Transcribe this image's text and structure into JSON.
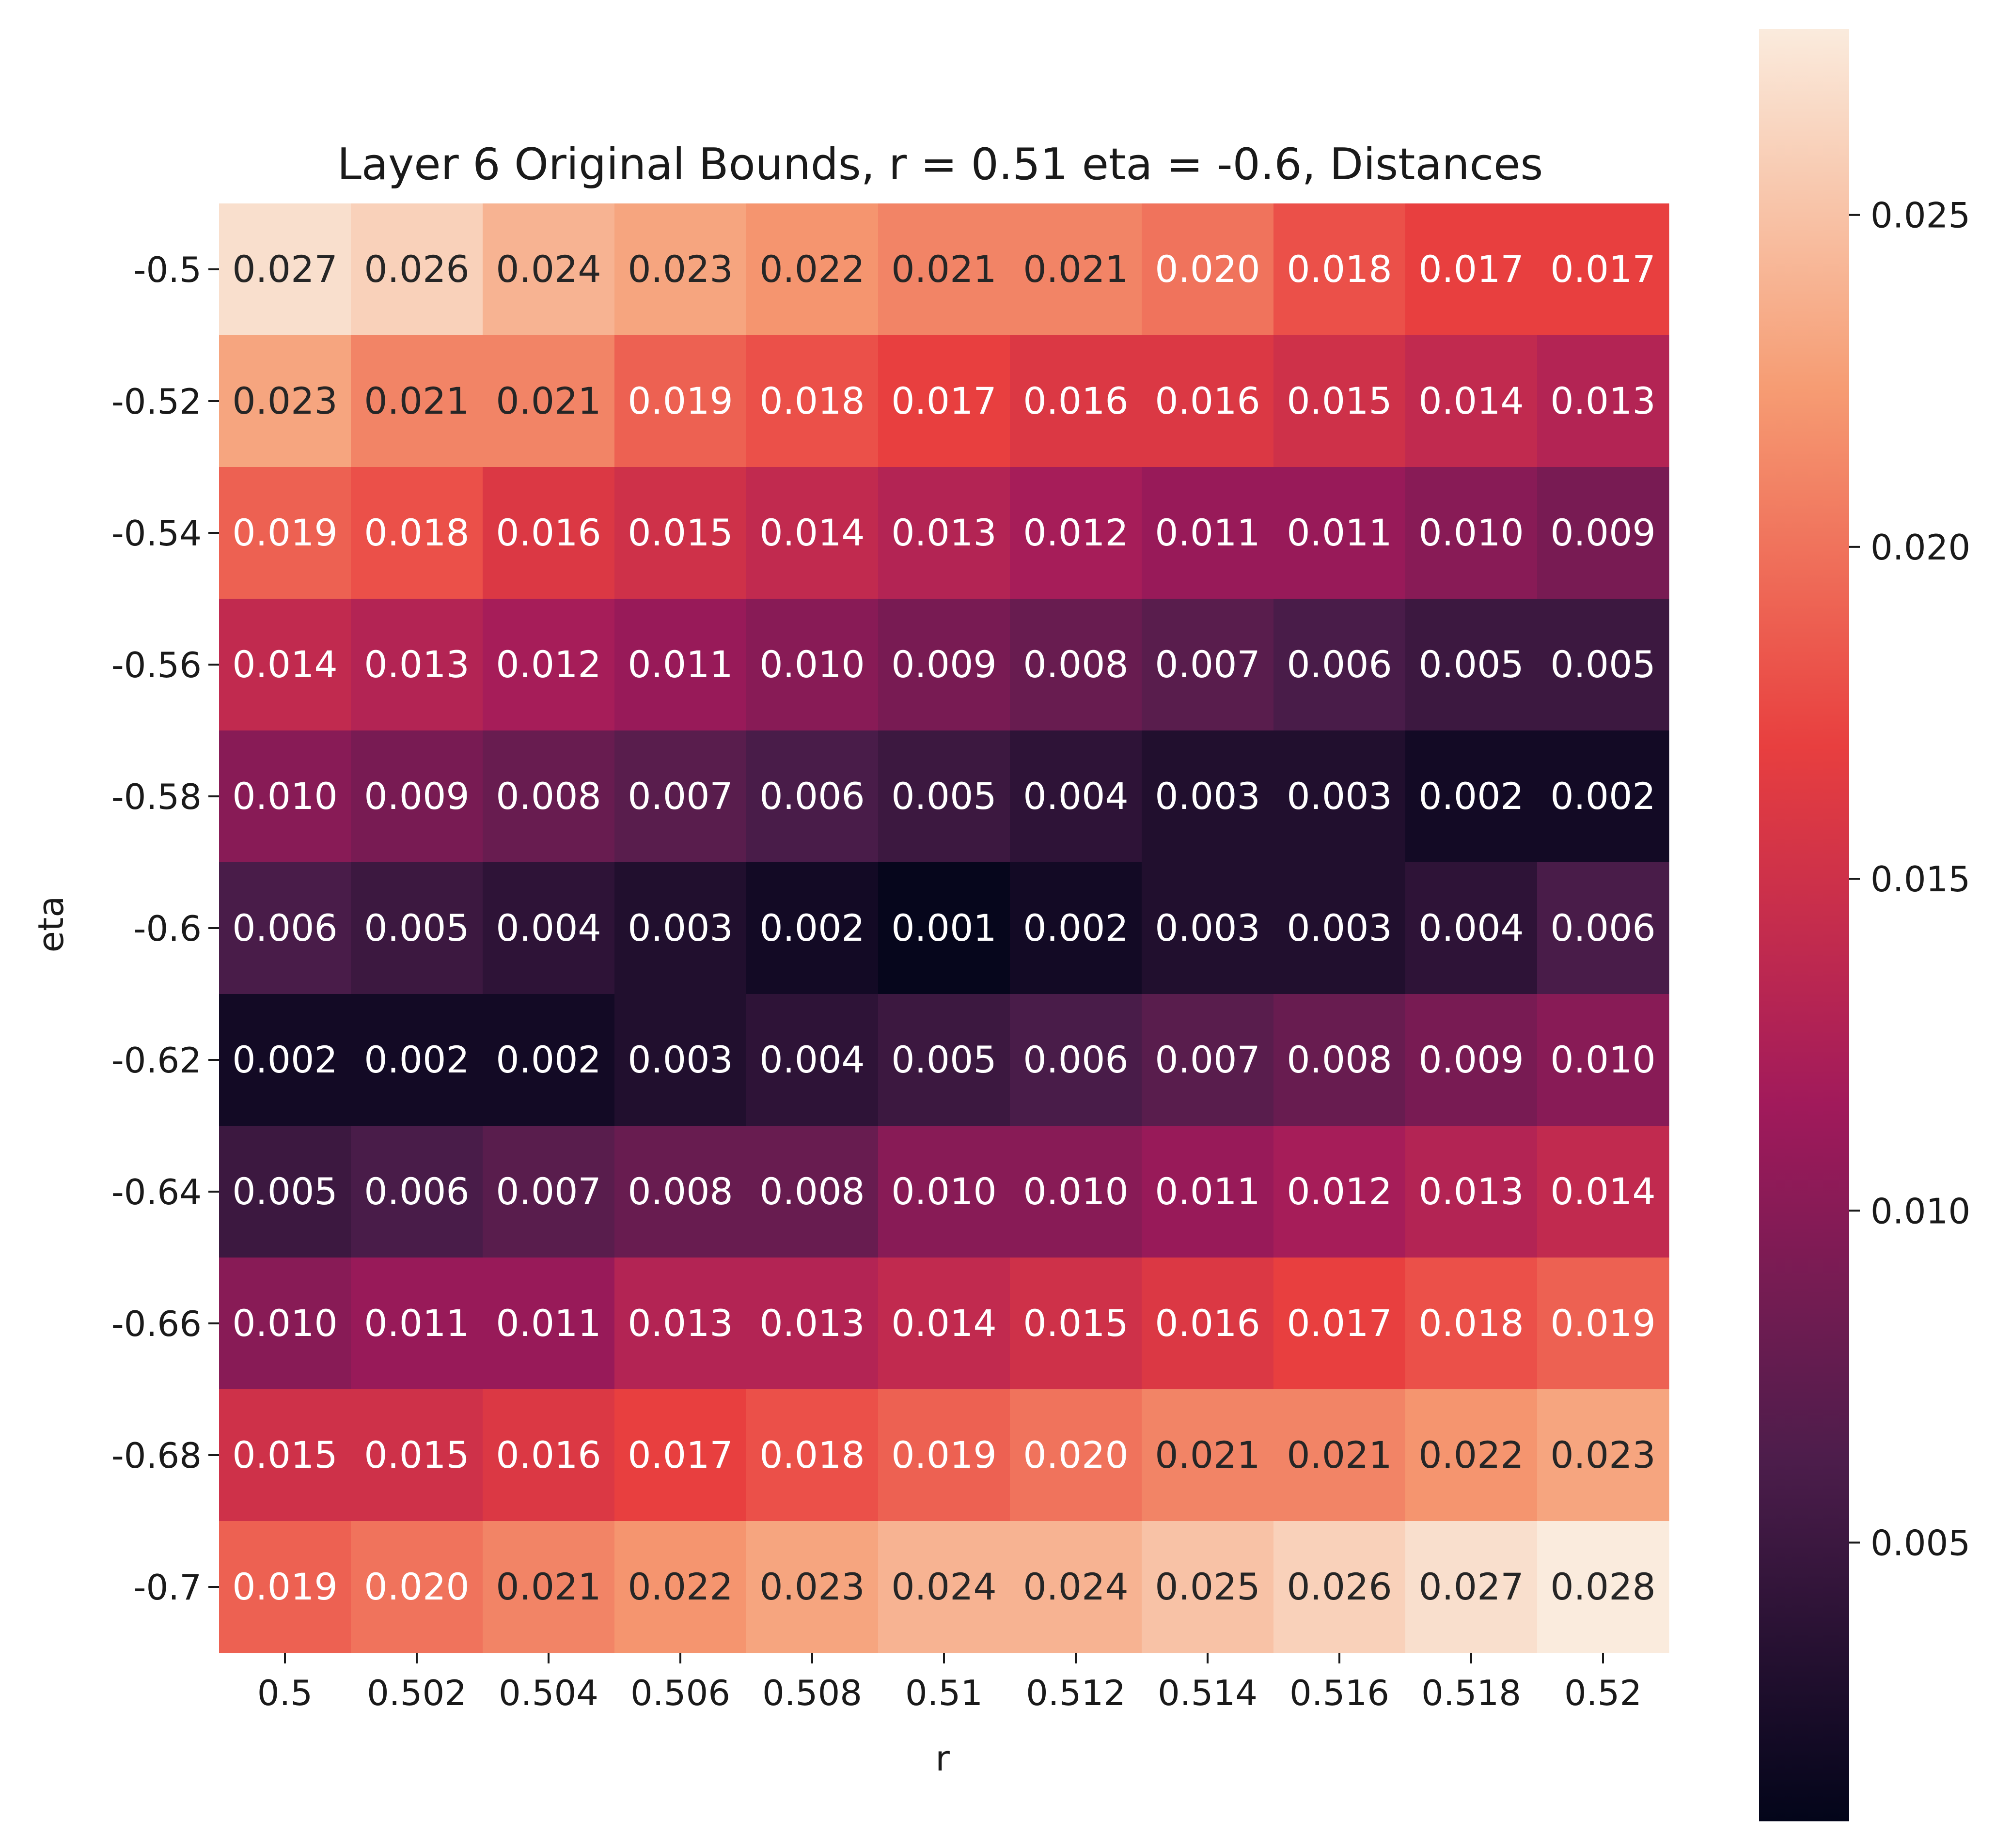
{
  "chart_data": {
    "type": "heatmap",
    "title": "Layer 6 Original Bounds, r = 0.51 eta = -0.6, Distances",
    "xlabel": "r",
    "ylabel": "eta",
    "x_ticks": [
      "0.5",
      "0.502",
      "0.504",
      "0.506",
      "0.508",
      "0.51",
      "0.512",
      "0.514",
      "0.516",
      "0.518",
      "0.52"
    ],
    "y_ticks": [
      "-0.5",
      "-0.52",
      "-0.54",
      "-0.56",
      "-0.58",
      "-0.6",
      "-0.62",
      "-0.64",
      "-0.66",
      "-0.68",
      "-0.7"
    ],
    "values": [
      [
        "0.027",
        "0.026",
        "0.024",
        "0.023",
        "0.022",
        "0.021",
        "0.021",
        "0.020",
        "0.018",
        "0.017",
        "0.017"
      ],
      [
        "0.023",
        "0.021",
        "0.021",
        "0.019",
        "0.018",
        "0.017",
        "0.016",
        "0.016",
        "0.015",
        "0.014",
        "0.013"
      ],
      [
        "0.019",
        "0.018",
        "0.016",
        "0.015",
        "0.014",
        "0.013",
        "0.012",
        "0.011",
        "0.011",
        "0.010",
        "0.009"
      ],
      [
        "0.014",
        "0.013",
        "0.012",
        "0.011",
        "0.010",
        "0.009",
        "0.008",
        "0.007",
        "0.006",
        "0.005",
        "0.005"
      ],
      [
        "0.010",
        "0.009",
        "0.008",
        "0.007",
        "0.006",
        "0.005",
        "0.004",
        "0.003",
        "0.003",
        "0.002",
        "0.002"
      ],
      [
        "0.006",
        "0.005",
        "0.004",
        "0.003",
        "0.002",
        "0.001",
        "0.002",
        "0.003",
        "0.003",
        "0.004",
        "0.006"
      ],
      [
        "0.002",
        "0.002",
        "0.002",
        "0.003",
        "0.004",
        "0.005",
        "0.006",
        "0.007",
        "0.008",
        "0.009",
        "0.010"
      ],
      [
        "0.005",
        "0.006",
        "0.007",
        "0.008",
        "0.008",
        "0.010",
        "0.010",
        "0.011",
        "0.012",
        "0.013",
        "0.014"
      ],
      [
        "0.010",
        "0.011",
        "0.011",
        "0.013",
        "0.013",
        "0.014",
        "0.015",
        "0.016",
        "0.017",
        "0.018",
        "0.019"
      ],
      [
        "0.015",
        "0.015",
        "0.016",
        "0.017",
        "0.018",
        "0.019",
        "0.020",
        "0.021",
        "0.021",
        "0.022",
        "0.023"
      ],
      [
        "0.019",
        "0.020",
        "0.021",
        "0.022",
        "0.023",
        "0.024",
        "0.024",
        "0.025",
        "0.026",
        "0.027",
        "0.028"
      ]
    ],
    "colorbar": {
      "min": 0.0008,
      "max": 0.0278,
      "ticks": [
        "0.025",
        "0.020",
        "0.015",
        "0.010",
        "0.005"
      ],
      "colormap": "rocket",
      "colormap_stops": [
        "#03051a",
        "#4c1d4b",
        "#a11a5b",
        "#e83f3f",
        "#f69c73",
        "#faebdd"
      ]
    },
    "annotation_colors": {
      "light": "#ffffff",
      "dark": "#262626"
    },
    "grid": false,
    "legend": "colorbar-right"
  }
}
